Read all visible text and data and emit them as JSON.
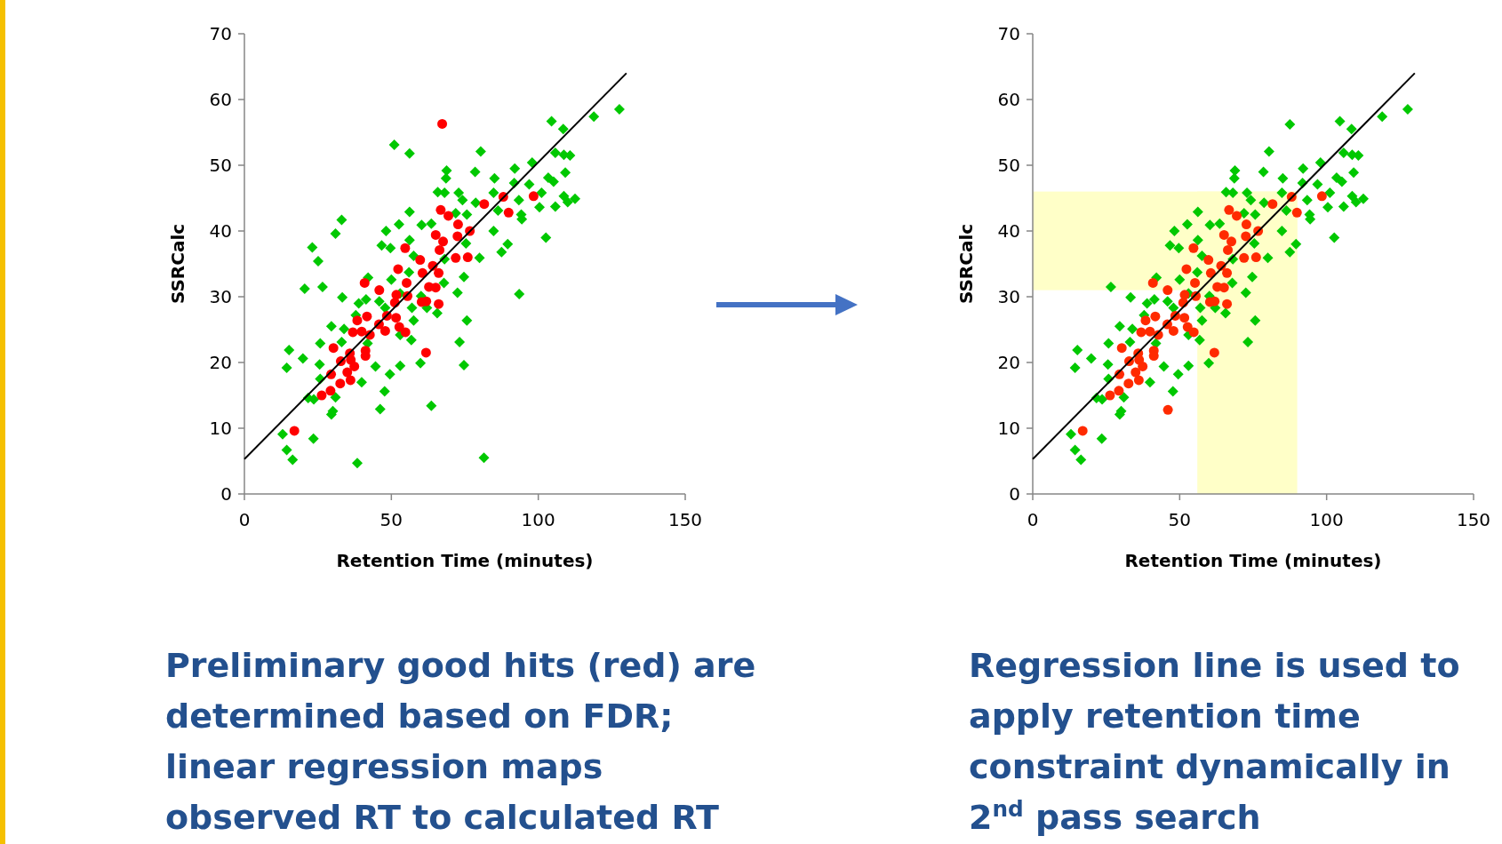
{
  "chart_data": [
    {
      "type": "scatter",
      "xlabel": "Retention Time (minutes)",
      "ylabel": "SSRCalc",
      "xlim": [
        0,
        150
      ],
      "ylim": [
        0,
        70
      ],
      "xticks": [
        0,
        50,
        100,
        150
      ],
      "yticks": [
        0,
        10,
        20,
        30,
        40,
        50,
        60,
        70
      ],
      "series": [
        {
          "color": "#00c800",
          "marker": "diamond",
          "x": [
            127.6,
            118.9,
            104.5,
            108.5,
            51.0,
            56.2,
            80.4,
            105.8,
            108.7,
            110.8,
            97.9,
            68.8,
            92.0,
            78.5,
            109.2,
            68.6,
            85.1,
            103.4,
            105.2,
            96.9,
            91.8,
            65.8,
            68.1,
            72.9,
            84.8,
            101.1,
            74.2,
            93.4,
            108.7,
            112.5,
            110.0,
            78.7,
            105.8,
            100.4,
            86.3,
            94.2,
            56.2,
            71.9,
            75.7,
            33.1,
            52.6,
            60.3,
            63.6,
            94.4,
            84.8,
            48.2,
            31.0,
            102.6,
            23.1,
            56.2,
            46.7,
            49.7,
            75.4,
            89.6,
            25.1,
            80.0,
            87.5,
            57.6,
            68.1,
            56.0,
            74.7,
            42.1,
            50.0,
            20.5,
            26.6,
            67.9,
            72.5,
            93.5,
            33.3,
            45.9,
            41.4,
            60.1,
            38.9,
            47.9,
            57.0,
            65.6,
            75.7,
            57.6,
            29.6,
            33.9,
            53.0,
            56.8,
            25.8,
            33.1,
            73.2,
            15.2,
            19.9,
            25.6,
            14.4,
            44.6,
            53.0,
            59.9,
            74.7,
            49.5,
            39.9,
            25.8,
            47.7,
            31.0,
            21.7,
            23.6,
            46.2,
            63.6,
            30.1,
            29.6,
            13.0,
            23.5,
            14.4,
            16.4,
            38.4,
            81.5,
            41.9,
            37.9,
            62.1,
            53.0
          ],
          "values": [
            58.5,
            57.4,
            56.7,
            55.5,
            53.1,
            51.8,
            52.1,
            51.9,
            51.6,
            51.5,
            50.4,
            49.2,
            49.5,
            49.0,
            48.9,
            48.0,
            48.0,
            48.1,
            47.5,
            47.1,
            47.3,
            45.9,
            45.8,
            45.8,
            45.8,
            45.8,
            44.7,
            44.7,
            45.3,
            44.9,
            44.4,
            44.3,
            43.7,
            43.6,
            43.1,
            42.5,
            42.9,
            42.7,
            42.5,
            41.7,
            41.0,
            40.9,
            41.1,
            41.8,
            40.0,
            40.0,
            39.6,
            39.0,
            37.5,
            38.6,
            37.8,
            37.4,
            38.1,
            38.0,
            35.4,
            35.9,
            36.8,
            36.2,
            35.7,
            33.7,
            33.0,
            32.9,
            32.6,
            31.2,
            31.5,
            32.1,
            30.6,
            30.4,
            29.9,
            29.3,
            29.6,
            30.1,
            29.0,
            28.3,
            28.3,
            27.5,
            26.4,
            26.4,
            25.5,
            25.1,
            24.2,
            23.4,
            22.9,
            23.1,
            23.1,
            21.9,
            20.6,
            19.7,
            19.2,
            19.4,
            19.5,
            19.9,
            19.6,
            18.2,
            17.0,
            17.5,
            15.6,
            14.7,
            14.6,
            14.4,
            12.9,
            13.4,
            12.6,
            12.1,
            9.1,
            8.4,
            6.7,
            5.2,
            4.7,
            5.5,
            22.9,
            27.2,
            28.3,
            30.5
          ]
        },
        {
          "color": "#ff0000",
          "marker": "circle",
          "x": [
            67.3,
            88.1,
            98.4,
            81.6,
            89.9,
            66.8,
            69.4,
            72.7,
            76.7,
            72.5,
            65.1,
            67.6,
            66.4,
            54.7,
            71.9,
            76.0,
            59.8,
            64.1,
            52.3,
            60.6,
            66.1,
            40.9,
            55.2,
            45.9,
            62.8,
            65.1,
            51.7,
            55.5,
            51.2,
            60.3,
            61.9,
            66.1,
            48.5,
            51.6,
            41.7,
            38.4,
            45.8,
            52.7,
            39.9,
            36.9,
            47.9,
            54.8,
            42.7,
            30.3,
            61.8,
            35.9,
            41.2,
            41.2,
            32.8,
            36.2,
            37.4,
            29.5,
            35.0,
            36.1,
            32.6,
            29.3,
            26.3,
            17.0
          ],
          "values": [
            56.3,
            45.2,
            45.3,
            44.1,
            42.8,
            43.2,
            42.3,
            41.0,
            40.0,
            39.2,
            39.4,
            38.4,
            37.1,
            37.4,
            35.9,
            36.0,
            35.6,
            34.7,
            34.2,
            33.6,
            33.6,
            32.1,
            32.1,
            31.0,
            31.5,
            31.4,
            30.3,
            30.1,
            29.1,
            29.2,
            29.3,
            28.9,
            27.1,
            26.8,
            27.0,
            26.4,
            25.8,
            25.4,
            24.7,
            24.6,
            24.8,
            24.6,
            24.2,
            22.2,
            21.5,
            21.4,
            21.8,
            21.0,
            20.2,
            20.4,
            19.4,
            18.2,
            18.5,
            17.3,
            16.8,
            15.7,
            15.0,
            9.6
          ]
        },
        {
          "type": "line",
          "color": "#000000",
          "x": [
            0,
            130
          ],
          "values": [
            5.3,
            64
          ]
        }
      ],
      "annotations": [
        "Preliminary good hits (red) are determined based on FDR; linear regression maps observed RT to calculated RT"
      ]
    },
    {
      "type": "scatter",
      "xlabel": "Retention Time (minutes)",
      "ylabel": "SSRCalc",
      "xlim": [
        0,
        150
      ],
      "ylim": [
        0,
        70
      ],
      "xticks": [
        0,
        50,
        100,
        150
      ],
      "yticks": [
        0,
        10,
        20,
        30,
        40,
        50,
        60,
        70
      ],
      "bands": [
        {
          "axis": "x",
          "from": 56,
          "to": 90,
          "color": "#ffffc8"
        },
        {
          "axis": "y",
          "from": 31,
          "to": 46,
          "color": "#ffffc8"
        }
      ],
      "series": [
        {
          "color": "#00c800",
          "marker": "diamond",
          "x": [
            127.6,
            118.9,
            104.5,
            108.5,
            87.5,
            80.4,
            105.8,
            108.7,
            110.8,
            97.9,
            68.8,
            92.0,
            78.5,
            109.2,
            68.6,
            85.1,
            103.4,
            105.2,
            96.9,
            91.8,
            65.8,
            68.1,
            72.9,
            84.8,
            101.1,
            74.2,
            93.4,
            108.7,
            112.5,
            110.0,
            78.7,
            105.8,
            100.4,
            86.3,
            94.2,
            56.2,
            71.9,
            75.7,
            52.6,
            60.3,
            63.6,
            94.4,
            84.8,
            48.2,
            102.6,
            56.2,
            46.7,
            49.7,
            75.4,
            89.6,
            80.0,
            87.5,
            57.6,
            68.1,
            56.0,
            74.7,
            42.1,
            50.0,
            26.6,
            67.9,
            72.5,
            33.3,
            45.9,
            41.4,
            60.1,
            38.9,
            47.9,
            57.0,
            65.6,
            75.7,
            57.6,
            29.6,
            33.9,
            53.0,
            56.8,
            25.8,
            33.1,
            73.2,
            15.2,
            19.9,
            25.6,
            14.4,
            44.6,
            53.0,
            59.9,
            49.5,
            39.9,
            25.8,
            47.7,
            31.0,
            21.7,
            23.6,
            30.1,
            29.6,
            13.0,
            23.5,
            14.4,
            16.4,
            41.9,
            37.9,
            62.1,
            53.0
          ],
          "values": [
            58.5,
            57.4,
            56.7,
            55.5,
            56.2,
            52.1,
            51.9,
            51.6,
            51.5,
            50.4,
            49.2,
            49.5,
            49.0,
            48.9,
            48.0,
            48.0,
            48.1,
            47.5,
            47.1,
            47.3,
            45.9,
            45.8,
            45.8,
            45.8,
            45.8,
            44.7,
            44.7,
            45.3,
            44.9,
            44.4,
            44.3,
            43.7,
            43.6,
            43.1,
            42.5,
            42.9,
            42.7,
            42.5,
            41.0,
            40.9,
            41.1,
            41.8,
            40.0,
            40.0,
            39.0,
            38.6,
            37.8,
            37.4,
            38.1,
            38.0,
            35.9,
            36.8,
            36.2,
            35.7,
            33.7,
            33.0,
            32.9,
            32.6,
            31.5,
            32.1,
            30.6,
            29.9,
            29.3,
            29.6,
            30.1,
            29.0,
            28.3,
            28.3,
            27.5,
            26.4,
            26.4,
            25.5,
            25.1,
            24.2,
            23.4,
            22.9,
            23.1,
            23.1,
            21.9,
            20.6,
            19.7,
            19.2,
            19.4,
            19.5,
            19.9,
            18.2,
            17.0,
            17.5,
            15.6,
            14.7,
            14.6,
            14.4,
            12.6,
            12.1,
            9.1,
            8.4,
            6.7,
            5.2,
            22.9,
            27.2,
            28.3,
            30.5
          ]
        },
        {
          "color": "#ff2a00",
          "marker": "circle",
          "x": [
            46.0,
            88.1,
            98.4,
            81.6,
            89.9,
            66.8,
            69.4,
            72.7,
            76.7,
            72.5,
            65.1,
            67.6,
            66.4,
            54.7,
            71.9,
            76.0,
            59.8,
            64.1,
            52.3,
            60.6,
            66.1,
            40.9,
            55.2,
            45.9,
            62.8,
            65.1,
            51.7,
            55.5,
            51.2,
            60.3,
            61.9,
            66.1,
            48.5,
            51.6,
            41.7,
            38.4,
            45.8,
            52.7,
            39.9,
            36.9,
            47.9,
            54.8,
            42.7,
            30.3,
            61.8,
            35.9,
            41.2,
            41.2,
            32.8,
            36.2,
            37.4,
            29.5,
            35.0,
            36.1,
            32.6,
            29.3,
            26.3,
            17.0
          ],
          "values": [
            12.8,
            45.2,
            45.3,
            44.1,
            42.8,
            43.2,
            42.3,
            41.0,
            40.0,
            39.2,
            39.4,
            38.4,
            37.1,
            37.4,
            35.9,
            36.0,
            35.6,
            34.7,
            34.2,
            33.6,
            33.6,
            32.1,
            32.1,
            31.0,
            31.5,
            31.4,
            30.3,
            30.1,
            29.1,
            29.2,
            29.3,
            28.9,
            27.1,
            26.8,
            27.0,
            26.4,
            25.8,
            25.4,
            24.7,
            24.6,
            24.8,
            24.6,
            24.2,
            22.2,
            21.5,
            21.4,
            21.8,
            21.0,
            20.2,
            20.4,
            19.4,
            18.2,
            18.5,
            17.3,
            16.8,
            15.7,
            15.0,
            9.6
          ]
        },
        {
          "type": "line",
          "color": "#000000",
          "x": [
            0,
            130
          ],
          "values": [
            5.3,
            64
          ]
        }
      ],
      "annotations": [
        "Regression line is used to apply retention time constraint dynamically in 2$^{nd}$ pass search"
      ]
    }
  ]
}
